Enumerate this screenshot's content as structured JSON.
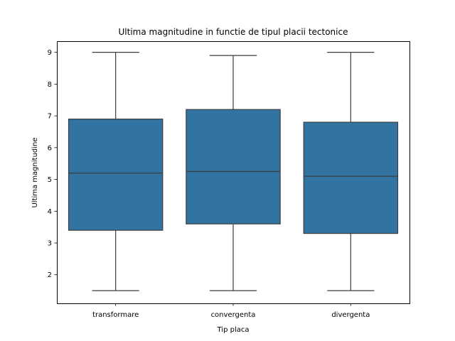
{
  "chart_data": {
    "type": "box",
    "title": "Ultima magnitudine in functie de tipul placii tectonice",
    "xlabel": "Tip placa",
    "ylabel": "Ultima magnitudine",
    "categories": [
      "transformare",
      "convergenta",
      "divergenta"
    ],
    "boxes": [
      {
        "category": "transformare",
        "whisker_low": 1.5,
        "q1": 3.4,
        "median": 5.2,
        "q3": 6.9,
        "whisker_high": 9.0
      },
      {
        "category": "convergenta",
        "whisker_low": 1.5,
        "q1": 3.6,
        "median": 5.25,
        "q3": 7.2,
        "whisker_high": 8.9
      },
      {
        "category": "divergenta",
        "whisker_low": 1.5,
        "q1": 3.3,
        "median": 5.1,
        "q3": 6.8,
        "whisker_high": 9.0
      }
    ],
    "yticks": [
      2,
      3,
      4,
      5,
      6,
      7,
      8,
      9
    ],
    "ylim": [
      1.1,
      9.35
    ],
    "grid": false,
    "legend": "none",
    "colors": {
      "box_fill": "#3274a1",
      "line": "#3d3d3d",
      "axes": "#000000"
    }
  }
}
